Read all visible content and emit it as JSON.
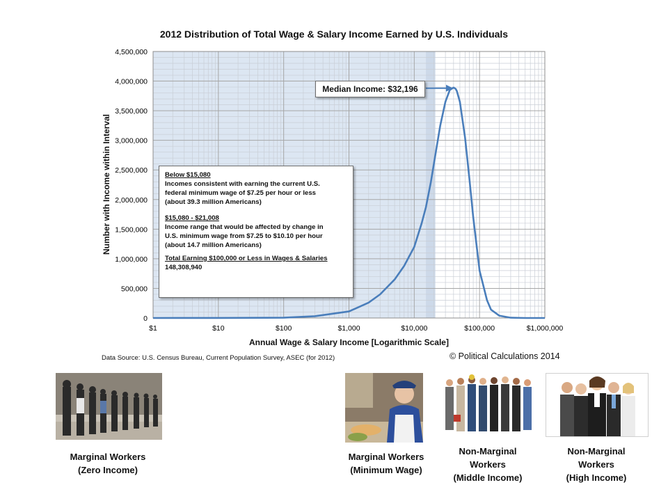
{
  "chart_data": {
    "type": "line",
    "title": "2012 Distribution  of Total Wage & Salary Income Earned by U.S. Individuals",
    "xlabel": "Annual Wage & Salary Income [Logarithmic Scale]",
    "ylabel": "Number with Income within Interval",
    "x_scale": "log",
    "xlim": [
      1,
      1000000
    ],
    "ylim": [
      0,
      4500000
    ],
    "grid": true,
    "x_tick_labels": [
      "$1",
      "$10",
      "$100",
      "$1,000",
      "$10,000",
      "$100,000",
      "$1,000,000"
    ],
    "y_tick_labels": [
      "0",
      "500,000",
      "1,000,000",
      "1,500,000",
      "2,000,000",
      "2,500,000",
      "3,000,000",
      "3,500,000",
      "4,000,000",
      "4,500,000"
    ],
    "shaded_region": {
      "x_from": 1,
      "x_to": 21008
    },
    "series": [
      {
        "color": "#4a7ebb",
        "x": [
          1,
          10,
          100,
          300,
          1000,
          2000,
          3000,
          5000,
          7000,
          10000,
          13000,
          15080,
          18000,
          21008,
          25000,
          30000,
          35000,
          40000,
          43000,
          45000,
          50000,
          60000,
          70000,
          80000,
          100000,
          130000,
          150000,
          200000,
          300000,
          500000,
          1000000
        ],
        "y": [
          0,
          1000,
          5000,
          30000,
          110000,
          260000,
          400000,
          650000,
          880000,
          1200000,
          1600000,
          1870000,
          2300000,
          2750000,
          3250000,
          3650000,
          3850000,
          3890000,
          3870000,
          3830000,
          3650000,
          3050000,
          2350000,
          1700000,
          800000,
          300000,
          140000,
          40000,
          5000,
          500,
          0
        ]
      }
    ],
    "annotations": [
      {
        "text": "Median Income: $32,196",
        "x": 32196,
        "y": 3880000
      }
    ]
  },
  "annotation_box": {
    "h1": "Below $15,080",
    "p1": [
      "Incomes consistent with earning the current U.S.",
      "federal minimum wage of $7.25 per hour or less",
      "(about 39.3 million Americans)"
    ],
    "h2": "$15,080 - $21,008",
    "p2": [
      "Income range that would be affected by change in",
      "U.S. minimum wage from $7.25 to $10.10 per hour",
      "(about 14.7 million Americans)"
    ],
    "h3": "Total Earning $100,000 or Less in Wages & Salaries",
    "p3": "148,308,940"
  },
  "median_label": "Median Income: $32,196",
  "source": "Data Source: U.S. Census Bureau, Current Population Survey, ASEC (for 2012)",
  "copyright": "© Political Calculations 2014",
  "captions": [
    [
      "Marginal Workers",
      "(Zero Income)"
    ],
    [
      "Marginal Workers",
      "(Minimum Wage)"
    ],
    [
      "Non-Marginal",
      "Workers",
      "(Middle Income)"
    ],
    [
      "Non-Marginal",
      "Workers",
      "(High Income)"
    ]
  ],
  "colors": {
    "curve": "#4a7ebb",
    "plot_bg": "#dce6f2",
    "grid": "#a6a6a6",
    "shade": "#c6d3e6"
  }
}
